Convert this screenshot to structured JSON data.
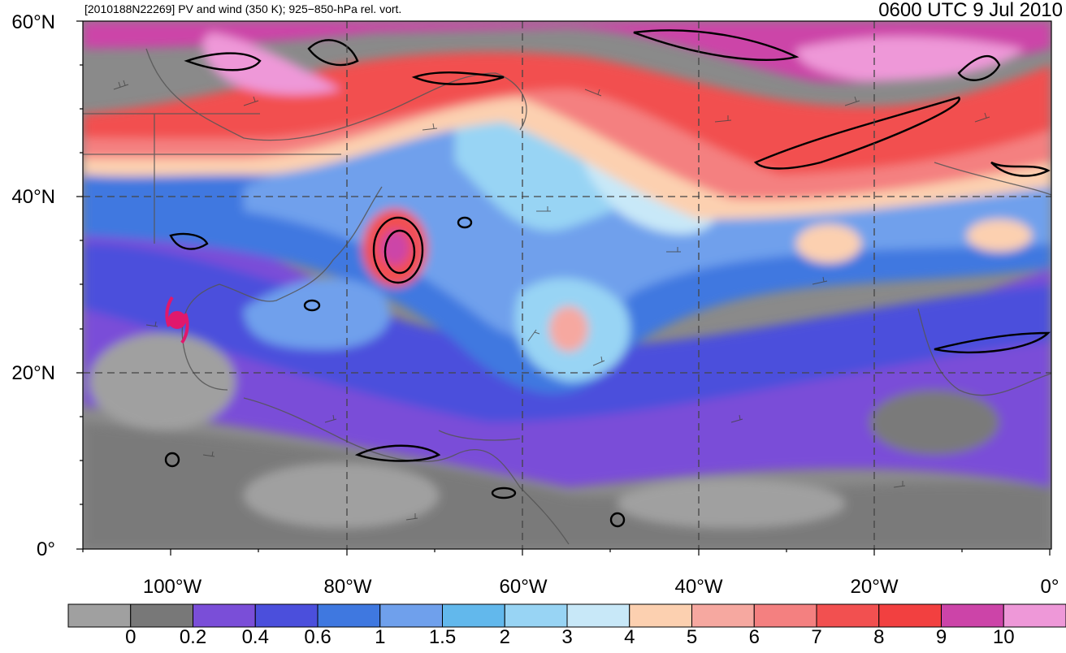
{
  "header": {
    "storm_id_title": "[2010188N22269] PV and wind (350 K); 925−850-hPa rel. vort.",
    "valid_time": "0600 UTC 9 Jul 2010"
  },
  "axes": {
    "latitude_labels": [
      "60°N",
      "40°N",
      "20°N",
      "0°"
    ],
    "longitude_labels": [
      "100°W",
      "80°W",
      "60°W",
      "40°W",
      "20°W",
      "0°"
    ]
  },
  "colorbar": {
    "labels": [
      "0",
      "0.2",
      "0.4",
      "0.6",
      "1",
      "1.5",
      "2",
      "3",
      "4",
      "5",
      "6",
      "7",
      "8",
      "9",
      "10"
    ],
    "colors": [
      "#a0a0a0",
      "#787878",
      "#7a4ed8",
      "#4b4fdc",
      "#3f78e0",
      "#6fa0ec",
      "#62b8ec",
      "#98d4f4",
      "#c8e8f8",
      "#fcd0b0",
      "#f6a8a0",
      "#f48080",
      "#f25050",
      "#f24040",
      "#cc44a8",
      "#ee98d8"
    ]
  },
  "map": {
    "palette": {
      "gray_light": "#a0a0a0",
      "gray_dark": "#787878",
      "purple": "#7a4ed8",
      "blue_dark": "#4b4fdc",
      "blue": "#3f78e0",
      "blue_mid": "#6fa0ec",
      "blue_light": "#98d4f4",
      "blue_pale": "#c8e8f8",
      "peach": "#fcd0b0",
      "salmon": "#f6a8a0",
      "red_light": "#f48080",
      "red": "#f25050",
      "magenta": "#cc44a8",
      "pink": "#ee98d8",
      "storm_symbol": "#e0186c"
    },
    "tropical_cyclone_symbol": "storm-marker"
  }
}
